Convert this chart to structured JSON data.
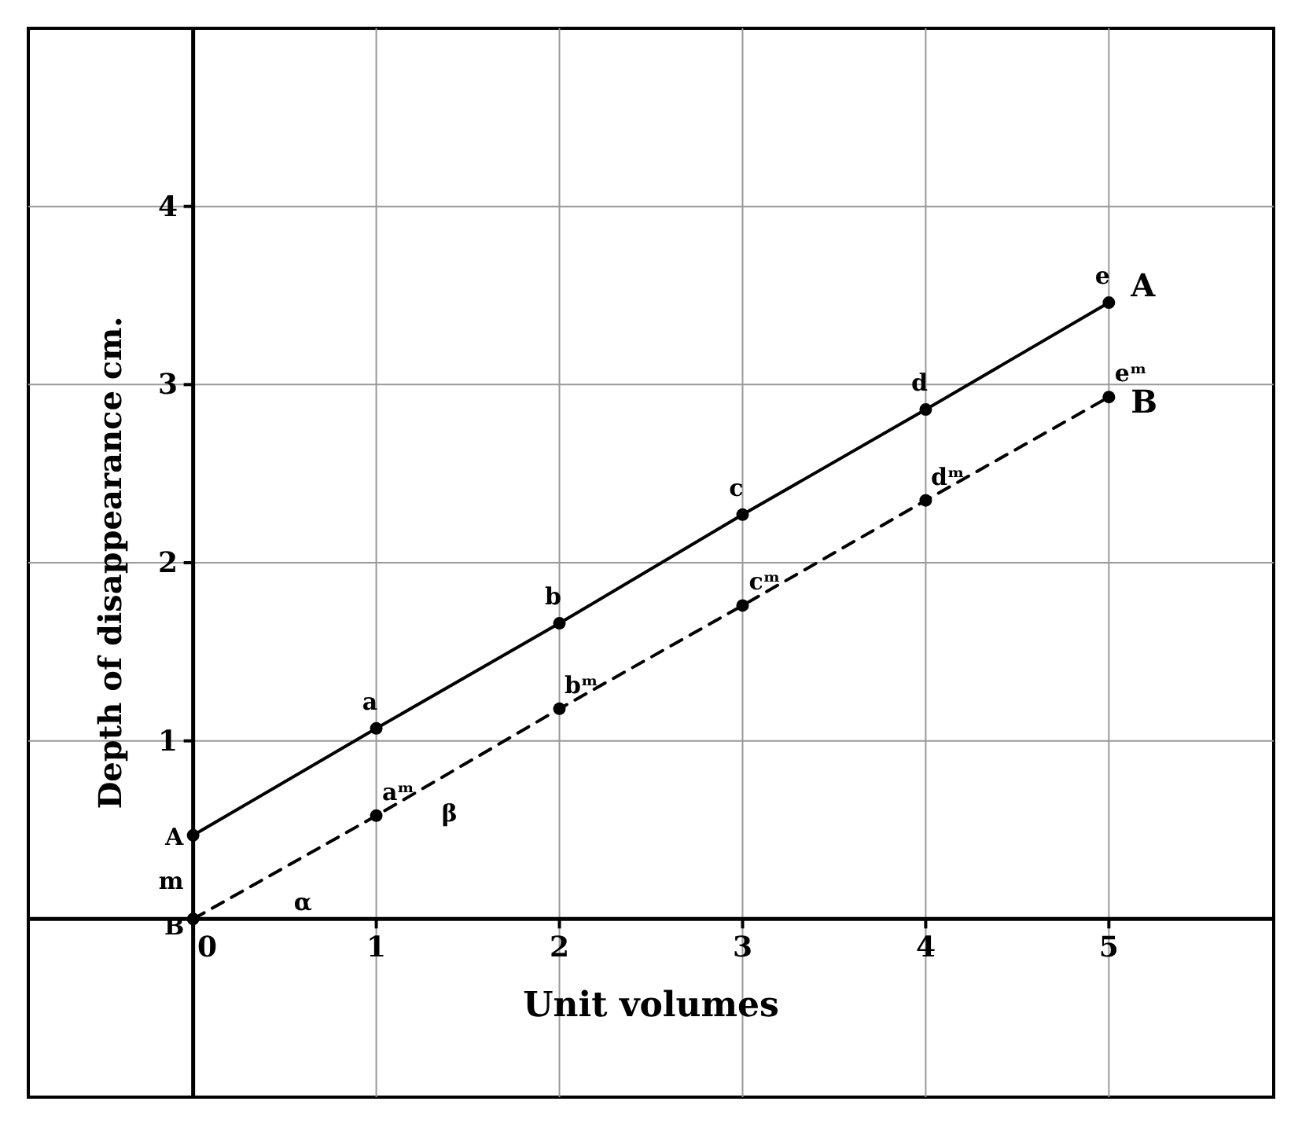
{
  "chart_data": {
    "type": "line",
    "xlabel": "Unit volumes",
    "ylabel": "Depth of disappearance cm.",
    "x": [
      0,
      1,
      2,
      3,
      4,
      5
    ],
    "series": [
      {
        "name": "A",
        "color": "#000000",
        "line_style": "solid",
        "values": [
          0.47,
          1.07,
          1.66,
          2.27,
          2.86,
          3.46
        ]
      },
      {
        "name": "B",
        "color": "#000000",
        "line_style": "dashed",
        "values": [
          0,
          0.58,
          1.18,
          1.76,
          2.35,
          2.93
        ]
      }
    ],
    "xlim": [
      -0.9,
      5.9
    ],
    "ylim": [
      -1,
      5
    ],
    "xticks": [
      0,
      1,
      2,
      3,
      4,
      5
    ],
    "yticks": [
      1,
      2,
      3,
      4
    ],
    "grid": true,
    "marker": "circle",
    "annotations": [
      {
        "text": "a",
        "x": 1,
        "y": 1.07
      },
      {
        "text": "b",
        "x": 2,
        "y": 1.66
      },
      {
        "text": "c",
        "x": 3,
        "y": 2.27
      },
      {
        "text": "d",
        "x": 4,
        "y": 2.86
      },
      {
        "text": "e",
        "x": 5,
        "y": 3.46
      },
      {
        "text": "aᵐ",
        "x": 1,
        "y": 0.58
      },
      {
        "text": "bᵐ",
        "x": 2,
        "y": 1.18
      },
      {
        "text": "cᵐ",
        "x": 3,
        "y": 1.76
      },
      {
        "text": "dᵐ",
        "x": 4,
        "y": 2.35
      },
      {
        "text": "eᵐ",
        "x": 5,
        "y": 2.93
      },
      {
        "text": "A",
        "x": 0,
        "y": 0.47
      },
      {
        "text": "B",
        "x": 0,
        "y": 0
      },
      "m",
      "α",
      "β"
    ]
  }
}
